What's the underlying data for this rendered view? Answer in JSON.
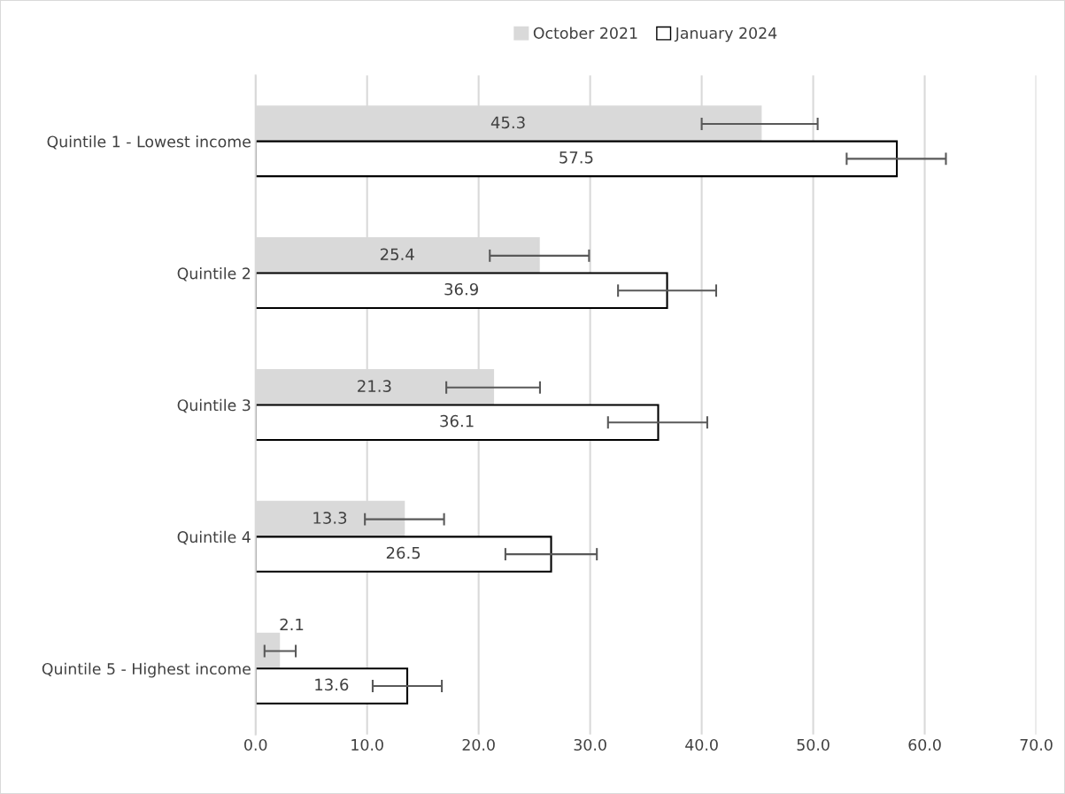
{
  "chart_data": {
    "type": "bar",
    "orientation": "horizontal",
    "categories": [
      "Quintile 1 - Lowest income",
      "Quintile 2",
      "Quintile 3",
      "Quintile 4",
      "Quintile 5 - Highest income"
    ],
    "series": [
      {
        "name": "October 2021",
        "color": "#d9d9d9",
        "values": [
          45.3,
          25.4,
          21.3,
          13.3,
          2.1
        ],
        "errors": [
          [
            40.0,
            50.4
          ],
          [
            21.0,
            29.9
          ],
          [
            17.1,
            25.5
          ],
          [
            9.8,
            16.9
          ],
          [
            0.8,
            3.6
          ]
        ]
      },
      {
        "name": "January 2024",
        "color": "#ffffff",
        "values": [
          57.5,
          36.9,
          36.1,
          26.5,
          13.6
        ],
        "errors": [
          [
            53.0,
            61.9
          ],
          [
            32.5,
            41.3
          ],
          [
            31.6,
            40.5
          ],
          [
            22.4,
            30.6
          ],
          [
            10.5,
            16.7
          ]
        ]
      }
    ],
    "xlim": [
      0,
      70
    ],
    "xticks": [
      {
        "value": 0,
        "label": "0.0"
      },
      {
        "value": 10,
        "label": "10.0"
      },
      {
        "value": 20,
        "label": "20.0"
      },
      {
        "value": 30,
        "label": "30.0"
      },
      {
        "value": 40,
        "label": "40.0"
      },
      {
        "value": 50,
        "label": "50.0"
      },
      {
        "value": 60,
        "label": "60.0"
      },
      {
        "value": 70,
        "label": "70.0"
      }
    ],
    "grid": "x",
    "legend": "top",
    "data_labels": true
  }
}
